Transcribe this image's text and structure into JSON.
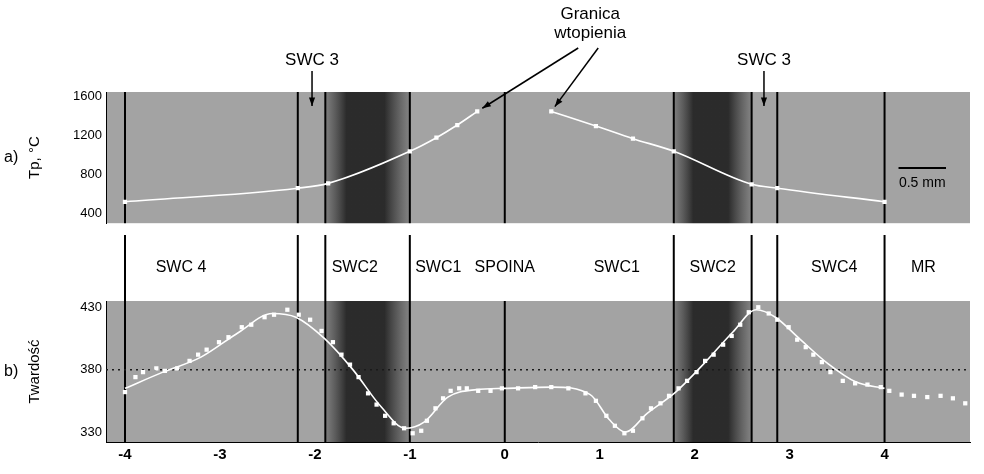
{
  "chart_data": [
    {
      "type": "line",
      "panel": "a)",
      "ylabel": "Tp, °C",
      "xlim": [
        -4.2,
        4.9
      ],
      "ylim": [
        300,
        1650
      ],
      "yticks": [
        400,
        800,
        1200,
        1600
      ],
      "tick_labels": "y",
      "grid": false,
      "series": [
        {
          "color": "#ffffff",
          "marker": "square",
          "line_style": "solid",
          "x": [
            -4,
            -2.18,
            -1.86,
            -1.0,
            -0.72,
            -0.5,
            -0.29
          ],
          "values": [
            520,
            660,
            710,
            1040,
            1180,
            1310,
            1450
          ]
        },
        {
          "color": "#ffffff",
          "marker": "square",
          "line_style": "solid",
          "x": [
            0.49,
            0.96,
            1.35,
            1.78,
            2.6,
            2.87,
            4
          ],
          "values": [
            1450,
            1300,
            1170,
            1040,
            700,
            660,
            520
          ]
        }
      ],
      "annotations": [
        {
          "text": "SWC 3",
          "x": -2.03
        },
        {
          "text": "SWC 3",
          "x": 2.73
        },
        {
          "text": "Granica wtopienia",
          "x": 0.9,
          "targets": [
            [
              -0.29,
              1450
            ],
            [
              0.49,
              1450
            ]
          ]
        }
      ],
      "scale_bar": {
        "label": "0.5 mm",
        "length": 0.5
      }
    },
    {
      "type": "line",
      "panel": "b)",
      "ylabel": "Twardość",
      "xlim": [
        -4.2,
        4.9
      ],
      "xticks": [
        -4,
        -3,
        -2,
        -1,
        0,
        1,
        2,
        3,
        4
      ],
      "ylim": [
        322,
        435
      ],
      "yticks": [
        330,
        380,
        430
      ],
      "grid": false,
      "reference_line": {
        "value": 380,
        "line_style": "dotted"
      },
      "series": [
        {
          "color": "#ffffff",
          "marker": "square",
          "line_style": "none",
          "x": [
            -4,
            -3.89,
            -3.81,
            -3.67,
            -3.58,
            -3.45,
            -3.32,
            -3.23,
            -3.14,
            -3.01,
            -2.91,
            -2.77,
            -2.67,
            -2.53,
            -2.43,
            -2.29,
            -2.17,
            -2.05,
            -1.93,
            -1.81,
            -1.72,
            -1.63,
            -1.54,
            -1.44,
            -1.35,
            -1.26,
            -1.17,
            -1.06,
            -0.97,
            -0.88,
            -0.82,
            -0.73,
            -0.65,
            -0.57,
            -0.48,
            -0.4,
            -0.28,
            -0.15,
            -0.03,
            0.14,
            0.32,
            0.49,
            0.67,
            0.85,
            0.96,
            1.07,
            1.16,
            1.26,
            1.35,
            1.45,
            1.54,
            1.64,
            1.73,
            1.83,
            1.92,
            2.02,
            2.11,
            2.2,
            2.3,
            2.39,
            2.48,
            2.57,
            2.67,
            2.78,
            2.87,
            2.99,
            3.08,
            3.17,
            3.25,
            3.34,
            3.43,
            3.56,
            3.69,
            3.82,
            3.96,
            4.05,
            4.18,
            4.31,
            4.45,
            4.59,
            4.72,
            4.85
          ],
          "values": [
            362,
            374,
            378,
            381,
            379,
            381,
            387,
            392,
            396,
            402,
            406,
            414,
            416,
            422,
            424,
            428,
            424,
            420,
            411,
            402,
            392,
            384,
            374,
            361,
            352,
            343,
            337,
            333,
            329,
            331,
            339,
            349,
            357,
            363,
            365,
            365,
            363,
            363,
            365,
            365,
            366,
            366,
            365,
            361,
            355,
            343,
            335,
            329,
            331,
            341,
            349,
            353,
            359,
            365,
            371,
            378,
            387,
            392,
            400,
            407,
            416,
            426,
            430,
            425,
            420,
            414,
            404,
            398,
            392,
            386,
            378,
            371,
            369,
            368,
            366,
            363,
            360,
            359,
            358,
            359,
            357,
            353
          ]
        },
        {
          "color": "#ffffff",
          "marker": "none",
          "line_style": "solid",
          "x": [
            -4,
            -3.6,
            -3.2,
            -2.8,
            -2.45,
            -2.2,
            -1.9,
            -1.6,
            -1.3,
            -1.05,
            -0.85,
            -0.6,
            -0.3,
            0,
            0.5,
            0.9,
            1.1,
            1.27,
            1.5,
            1.8,
            2.1,
            2.4,
            2.65,
            2.85,
            3.1,
            3.4,
            3.7,
            4.0
          ],
          "values": [
            365,
            378,
            390,
            410,
            425,
            422,
            405,
            380,
            350,
            333,
            338,
            358,
            364,
            365,
            366,
            360,
            340,
            330,
            345,
            362,
            385,
            410,
            428,
            422,
            405,
            385,
            370,
            365
          ]
        }
      ]
    }
  ],
  "zone_boundaries": [
    -4,
    -2.18,
    -1.89,
    -1.0,
    0,
    1.78,
    2.6,
    2.87,
    4
  ],
  "zones": [
    {
      "label": "SWC 4",
      "x": -3.41
    },
    {
      "label": "SWC2",
      "x": -1.58
    },
    {
      "label": "SWC1",
      "x": -0.7
    },
    {
      "label": "SPOINA",
      "x": 0
    },
    {
      "label": "SWC1",
      "x": 1.18
    },
    {
      "label": "SWC2",
      "x": 2.19
    },
    {
      "label": "SWC4",
      "x": 3.47
    },
    {
      "label": "MR",
      "x": 4.41
    }
  ]
}
